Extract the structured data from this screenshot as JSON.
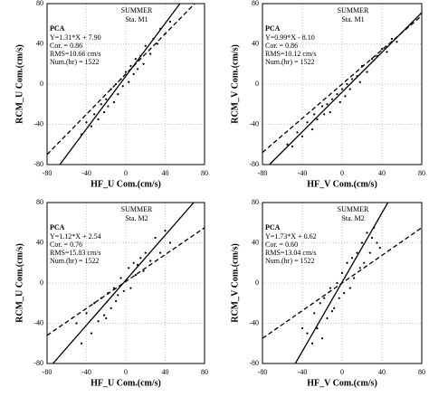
{
  "chart_data": [
    {
      "type": "scatter",
      "xlabel": "HF_U Com.(cm/s)",
      "ylabel": "RCM_U Com.(cm/s)",
      "season": "SUMMER",
      "station": "Sta. M1",
      "method": "PCA",
      "stats": [
        "Y=1.31*X + 7.90",
        "Cor. = 0.86",
        "RMS=10.66 cm/s",
        "Num.(hr) = 1522"
      ],
      "xlim": [
        -80,
        80
      ],
      "ylim": [
        -80,
        80
      ],
      "xticks": [
        -80,
        -40,
        0,
        40,
        80
      ],
      "yticks": [
        -80,
        -40,
        0,
        40,
        80
      ],
      "grid": true,
      "color": "#000000",
      "x": [
        -45,
        -40,
        -35,
        -32,
        -28,
        -25,
        -22,
        -20,
        -18,
        -15,
        -12,
        -10,
        -8,
        -5,
        -3,
        0,
        3,
        5,
        8,
        10,
        12,
        15,
        18,
        20,
        25,
        28,
        32,
        35,
        40,
        45
      ],
      "values": [
        -50,
        -38,
        -42,
        -30,
        -35,
        -20,
        -28,
        -15,
        -22,
        -5,
        -18,
        0,
        -10,
        5,
        -2,
        12,
        2,
        18,
        10,
        25,
        15,
        28,
        20,
        38,
        30,
        45,
        40,
        55,
        50,
        62
      ],
      "fit_line": {
        "x": [
          -67,
          55
        ],
        "y": [
          -80,
          80
        ]
      },
      "ref_line": {
        "x": [
          -80,
          70
        ],
        "y": [
          -70,
          80
        ]
      }
    },
    {
      "type": "scatter",
      "xlabel": "HF_V Com.(cm/s)",
      "ylabel": "RCM_V Com.(cm/s)",
      "season": "SUMMER",
      "station": "Sta. M1",
      "method": "PCA",
      "stats": [
        "Y=0.99*X - 8.10",
        "Cor. = 0.86",
        "RMS=10.12 cm/s",
        "Num.(hr) = 1522"
      ],
      "xlim": [
        -80,
        80
      ],
      "ylim": [
        -80,
        80
      ],
      "xticks": [
        -80,
        -40,
        0,
        40,
        80
      ],
      "yticks": [
        -80,
        -40,
        0,
        40,
        80
      ],
      "grid": true,
      "color": "#000000",
      "x": [
        -55,
        -50,
        -45,
        -40,
        -35,
        -30,
        -28,
        -25,
        -20,
        -18,
        -15,
        -12,
        -10,
        -5,
        -2,
        0,
        3,
        5,
        8,
        10,
        15,
        18,
        20,
        25,
        30,
        35,
        40,
        45,
        50,
        55
      ],
      "values": [
        -60,
        -62,
        -48,
        -52,
        -38,
        -45,
        -30,
        -35,
        -22,
        -30,
        -20,
        -28,
        -15,
        -10,
        -18,
        -5,
        -12,
        0,
        -5,
        5,
        8,
        2,
        18,
        12,
        25,
        28,
        35,
        32,
        45,
        42
      ],
      "fit_line": {
        "x": [
          -73,
          80
        ],
        "y": [
          -80,
          71
        ]
      },
      "ref_line": {
        "x": [
          -80,
          80
        ],
        "y": [
          -68,
          68
        ]
      }
    },
    {
      "type": "scatter",
      "xlabel": "HF_U Com.(cm/s)",
      "ylabel": "RCM_U Com.(cm/s)",
      "season": "SUMMER",
      "station": "Sta. M2",
      "method": "PCA",
      "stats": [
        "Y=1.12*X + 2.54",
        "Cor. = 0.76",
        "RMS=15.83 cm/s",
        "Num.(hr) = 1522"
      ],
      "xlim": [
        -80,
        80
      ],
      "ylim": [
        -80,
        80
      ],
      "xticks": [
        -80,
        -40,
        0,
        40,
        80
      ],
      "yticks": [
        -80,
        -40,
        0,
        40,
        80
      ],
      "grid": true,
      "color": "#000000",
      "x": [
        -50,
        -45,
        -40,
        -35,
        -32,
        -28,
        -25,
        -22,
        -20,
        -18,
        -15,
        -12,
        -10,
        -8,
        -5,
        -2,
        0,
        3,
        5,
        8,
        10,
        12,
        15,
        18,
        20,
        25,
        30,
        35,
        40,
        45
      ],
      "values": [
        -40,
        -60,
        -30,
        -50,
        -20,
        -38,
        -15,
        -32,
        -35,
        -10,
        -25,
        -5,
        -18,
        -12,
        5,
        -8,
        2,
        15,
        -5,
        20,
        8,
        18,
        25,
        12,
        30,
        22,
        45,
        30,
        52,
        40
      ],
      "fit_line": {
        "x": [
          -74,
          69
        ],
        "y": [
          -80,
          80
        ]
      },
      "ref_line": {
        "x": [
          -80,
          80
        ],
        "y": [
          -52,
          55
        ]
      }
    },
    {
      "type": "scatter",
      "xlabel": "HF_V Com.(cm/s)",
      "ylabel": "RCM_V Com.(cm/s)",
      "season": "SUMMER",
      "station": "Sta. M2",
      "method": "PCA",
      "stats": [
        "Y=1.73*X + 0.62",
        "Cor. = 0.60",
        "RMS=13.04 cm/s",
        "Num.(hr) = 1522"
      ],
      "xlim": [
        -80,
        80
      ],
      "ylim": [
        -80,
        80
      ],
      "xticks": [
        -80,
        -40,
        0,
        40,
        80
      ],
      "yticks": [
        -80,
        -40,
        0,
        40,
        80
      ],
      "grid": true,
      "color": "#000000",
      "x": [
        -35,
        -30,
        -28,
        -25,
        -22,
        -20,
        -18,
        -15,
        -12,
        -10,
        -8,
        -5,
        -3,
        0,
        2,
        5,
        8,
        10,
        12,
        15,
        18,
        20,
        22,
        25,
        28,
        30,
        32,
        35,
        -40,
        38
      ],
      "values": [
        -50,
        -60,
        -30,
        -45,
        -20,
        -55,
        -15,
        -35,
        -5,
        -28,
        -25,
        0,
        -15,
        10,
        -10,
        20,
        -5,
        25,
        5,
        30,
        15,
        40,
        20,
        50,
        30,
        45,
        55,
        40,
        -45,
        35
      ],
      "fit_line": {
        "x": [
          -47,
          46
        ],
        "y": [
          -80,
          80
        ]
      },
      "ref_line": {
        "x": [
          -80,
          80
        ],
        "y": [
          -55,
          55
        ]
      }
    }
  ]
}
